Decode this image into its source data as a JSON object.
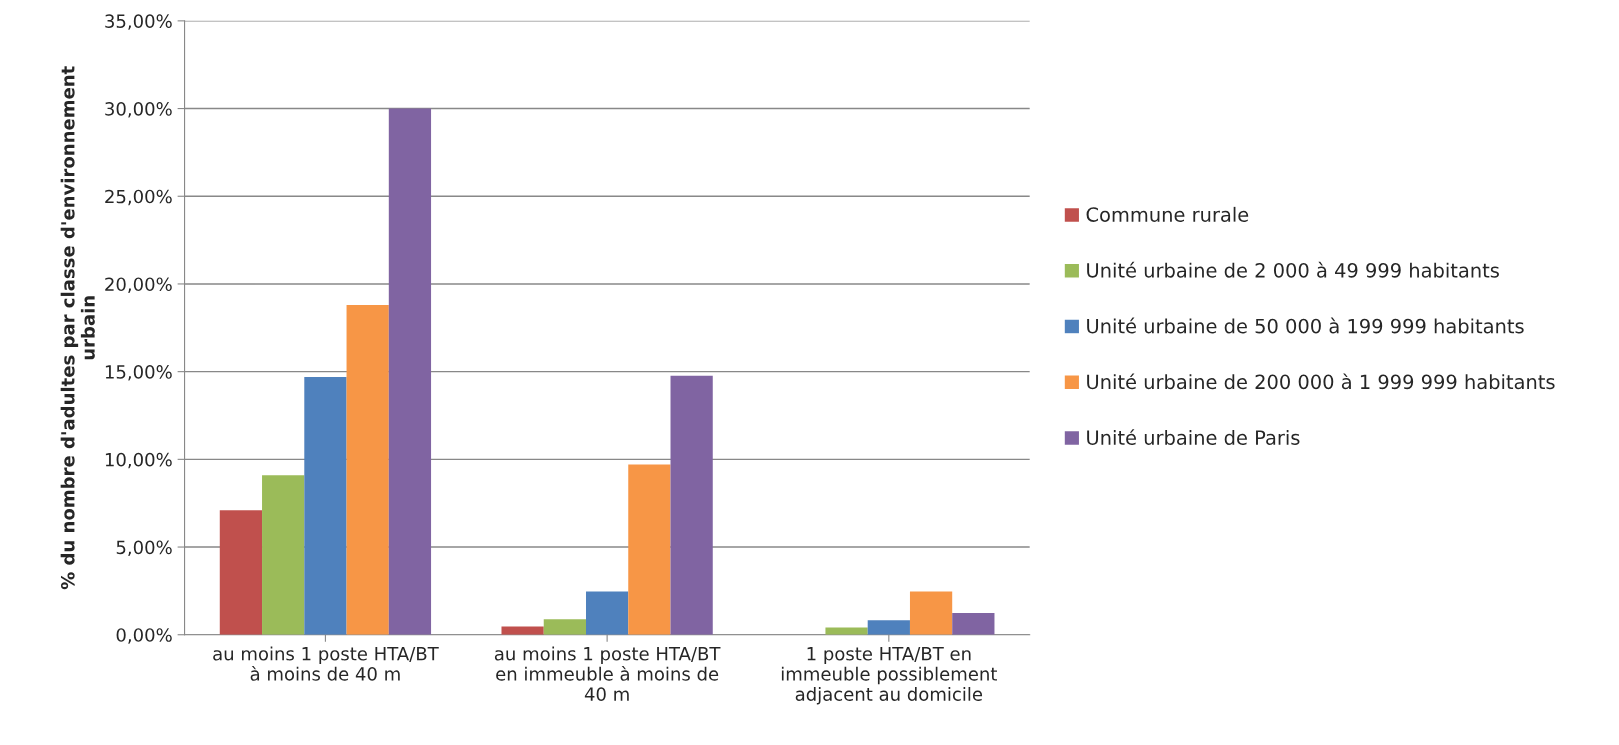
{
  "chart_data": {
    "type": "bar",
    "ylabel": "% du nombre d'adultes par classe d'environnement\nurbain",
    "categories": [
      "au moins 1 poste HTA/BT\nà moins de 40 m",
      "au moins 1 poste HTA/BT\nen immeuble à moins de\n40 m",
      "1 poste HTA/BT en\nimmeuble possiblement\nadjacent au domicile"
    ],
    "series": [
      {
        "name": "Commune rurale",
        "color": "#c0504d",
        "values": [
          7.1,
          0.47,
          null
        ]
      },
      {
        "name": "Unité urbaine de 2 000 à 49 999 habitants",
        "color": "#9bbb59",
        "values": [
          9.1,
          0.88,
          0.41
        ]
      },
      {
        "name": "Unité urbaine de 50 000 à 199 999 habitants",
        "color": "#4f81bd",
        "values": [
          14.7,
          2.47,
          0.82
        ]
      },
      {
        "name": "Unité urbaine de 200 000 à 1 999 999 habitants",
        "color": "#f79646",
        "values": [
          18.8,
          9.7,
          2.47
        ]
      },
      {
        "name": "Unité urbaine de Paris",
        "color": "#8064a2",
        "values": [
          30.0,
          14.76,
          1.24
        ]
      }
    ],
    "ylim": [
      0,
      35
    ],
    "yticks": [
      {
        "value": 0,
        "label": "0,00%"
      },
      {
        "value": 5,
        "label": "5,00%"
      },
      {
        "value": 10,
        "label": "10,00%"
      },
      {
        "value": 15,
        "label": "15,00%"
      },
      {
        "value": 20,
        "label": "20,00%"
      },
      {
        "value": 25,
        "label": "25,00%"
      },
      {
        "value": 30,
        "label": "30,00%"
      },
      {
        "value": 35,
        "label": "35,00%"
      }
    ],
    "grid": "y",
    "legend": "right"
  }
}
